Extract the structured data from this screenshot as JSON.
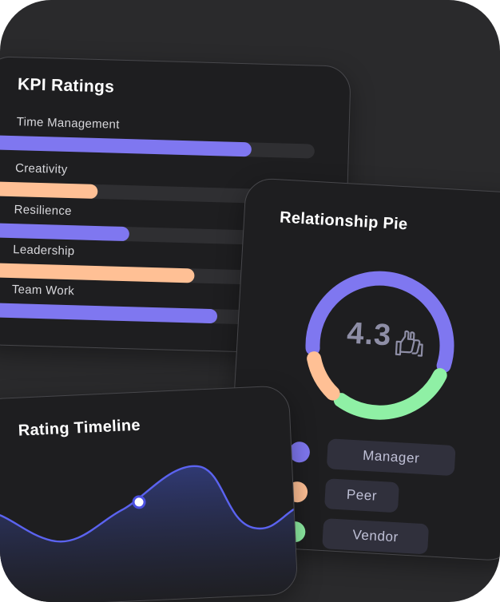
{
  "kpi": {
    "title": "KPI Ratings",
    "items": [
      {
        "label": "Time Management",
        "value": 0.81,
        "color": "#7f77f0"
      },
      {
        "label": "Creativity",
        "value": 0.35,
        "color": "#ffc095"
      },
      {
        "label": "Resilience",
        "value": 0.45,
        "color": "#7f77f0"
      },
      {
        "label": "Leadership",
        "value": 0.65,
        "color": "#ffc095"
      },
      {
        "label": "Team Work",
        "value": 0.72,
        "color": "#7f77f0"
      }
    ]
  },
  "pie": {
    "title": "Relationship Pie",
    "rating": "4.3",
    "icon": "thumbs-up-icon",
    "segments": [
      {
        "name": "Manager",
        "share": 0.58,
        "color": "#7f77f0"
      },
      {
        "name": "Peer",
        "share": 0.12,
        "color": "#ffc095"
      },
      {
        "name": "Vendor",
        "share": 0.3,
        "color": "#8ff0a5"
      }
    ],
    "legend": [
      "Manager",
      "Peer",
      "Vendor"
    ]
  },
  "timeline": {
    "title": "Rating Timeline",
    "line_color": "#5b63f0",
    "fill_color": "#313b78"
  }
}
